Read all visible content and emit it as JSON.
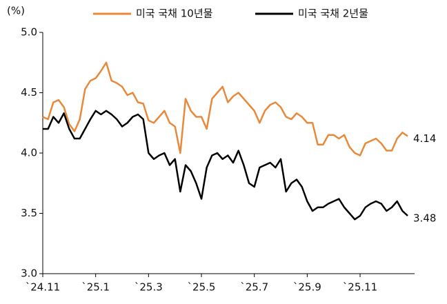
{
  "chart_data": {
    "type": "line",
    "y_label": "(%)",
    "categories": [
      "`24.11",
      null,
      null,
      null,
      null,
      null,
      null,
      null,
      null,
      null,
      "`25.1",
      null,
      null,
      null,
      null,
      null,
      null,
      null,
      null,
      null,
      "`25.3",
      null,
      null,
      null,
      null,
      null,
      null,
      null,
      null,
      null,
      "`25.5",
      null,
      null,
      null,
      null,
      null,
      null,
      null,
      null,
      null,
      "`25.7",
      null,
      null,
      null,
      null,
      null,
      null,
      null,
      null,
      null,
      "`25.9",
      null,
      null,
      null,
      null,
      null,
      null,
      null,
      null,
      null,
      "`25.11",
      null,
      null,
      null,
      null,
      null,
      null,
      null,
      null,
      null
    ],
    "series": [
      {
        "name": "미국 국채 10년물",
        "color": "#e8893a",
        "values": [
          4.3,
          4.28,
          4.42,
          4.44,
          4.38,
          4.24,
          4.18,
          4.28,
          4.53,
          4.6,
          4.62,
          4.68,
          4.75,
          4.6,
          4.58,
          4.55,
          4.48,
          4.5,
          4.42,
          4.41,
          4.27,
          4.25,
          4.3,
          4.35,
          4.25,
          4.22,
          4.0,
          4.45,
          4.35,
          4.3,
          4.3,
          4.2,
          4.45,
          4.5,
          4.55,
          4.42,
          4.47,
          4.5,
          4.45,
          4.4,
          4.35,
          4.25,
          4.35,
          4.4,
          4.42,
          4.38,
          4.3,
          4.28,
          4.33,
          4.3,
          4.25,
          4.25,
          4.07,
          4.07,
          4.15,
          4.15,
          4.12,
          4.15,
          4.05,
          4.0,
          3.98,
          4.08,
          4.1,
          4.12,
          4.08,
          4.02,
          4.02,
          4.12,
          4.17,
          4.14
        ]
      },
      {
        "name": "미국 국채 2년물",
        "color": "#000000",
        "values": [
          4.2,
          4.2,
          4.3,
          4.25,
          4.33,
          4.2,
          4.12,
          4.12,
          4.2,
          4.28,
          4.35,
          4.32,
          4.35,
          4.32,
          4.28,
          4.22,
          4.25,
          4.3,
          4.32,
          4.28,
          4.0,
          3.95,
          3.98,
          4.0,
          3.9,
          3.95,
          3.68,
          3.9,
          3.85,
          3.75,
          3.62,
          3.88,
          3.98,
          4.0,
          3.95,
          3.98,
          3.92,
          4.02,
          3.9,
          3.75,
          3.72,
          3.88,
          3.9,
          3.92,
          3.88,
          3.95,
          3.68,
          3.75,
          3.78,
          3.72,
          3.6,
          3.52,
          3.55,
          3.55,
          3.58,
          3.6,
          3.62,
          3.55,
          3.5,
          3.45,
          3.48,
          3.55,
          3.58,
          3.6,
          3.58,
          3.52,
          3.55,
          3.6,
          3.52,
          3.48
        ]
      }
    ],
    "ylim": [
      3.0,
      5.0
    ],
    "yticks": [
      {
        "value": 3.0,
        "label": "3.0"
      },
      {
        "value": 3.5,
        "label": "3.5"
      },
      {
        "value": 4.0,
        "label": "4.0"
      },
      {
        "value": 4.5,
        "label": "4.5"
      },
      {
        "value": 5.0,
        "label": "5.0"
      }
    ],
    "grid": false,
    "legend": "top"
  }
}
